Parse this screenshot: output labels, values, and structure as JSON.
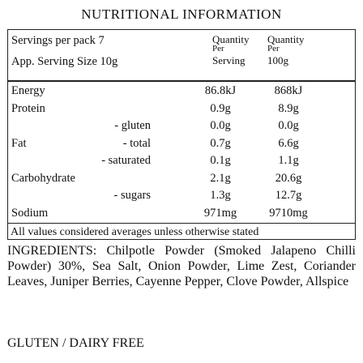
{
  "title": "NUTRITIONAL INFORMATION",
  "header": {
    "servings": "Servings per pack 7",
    "serving_size": "App. Serving Size 10g",
    "col_serving": [
      "Quantity",
      "Per",
      "Serving"
    ],
    "col_100g": [
      "Quantity",
      "Per",
      "100g"
    ]
  },
  "table": {
    "rows": [
      {
        "name": "Energy",
        "serving": "86.8kJ",
        "per100g": "868kJ"
      },
      {
        "name": "Protein",
        "serving": "0.9g",
        "per100g": "8.9g"
      },
      {
        "sub": "- gluten",
        "serving": "0.0g",
        "per100g": "0.0g"
      },
      {
        "name": "Fat",
        "sub": "- total",
        "serving": "0.7g",
        "per100g": "6.6g"
      },
      {
        "sub": "- saturated",
        "serving": "0.1g",
        "per100g": "1.1g"
      },
      {
        "name": "Carbohydrate",
        "serving": "2.1g",
        "per100g": "20.6g"
      },
      {
        "sub": "- sugars",
        "serving": "1.3g",
        "per100g": "12.7g"
      },
      {
        "name": "Sodium",
        "serving": "971mg",
        "per100g": "9710mg"
      }
    ]
  },
  "footnote": "All values considered averages unless otherwise stated",
  "ingredients": "INGREDIENTS: Chilpotle Powder (Smoked Jalapeno Chilli Powder) 30%, Sea Salt, Onion Powder, Lime Zest, Coriander Leaves, Juniper Berries, Cayenne Pepper, Clove Powder, Allspice",
  "allergen": "GLUTEN / DAIRY FREE"
}
